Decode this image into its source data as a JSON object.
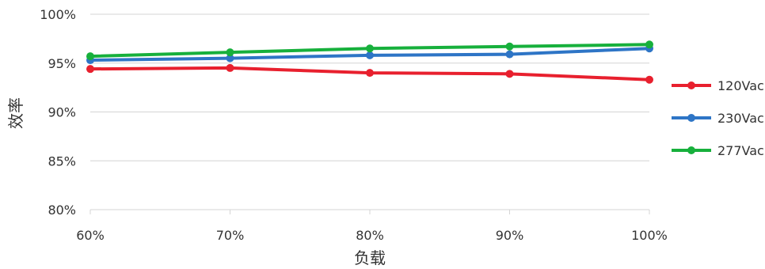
{
  "chart_data": {
    "type": "line",
    "xlabel": "负载",
    "ylabel": "效率",
    "categories": [
      "60%",
      "70%",
      "80%",
      "90%",
      "100%"
    ],
    "ylim": [
      80,
      100
    ],
    "yticks": [
      80,
      85,
      90,
      95,
      100
    ],
    "ytick_labels": [
      "80%",
      "85%",
      "90%",
      "95%",
      "100%"
    ],
    "grid": "horizontal",
    "legend_position": "right",
    "series": [
      {
        "name": "120Vac",
        "color": "#e8202e",
        "values": [
          94.4,
          94.5,
          94.0,
          93.9,
          93.3
        ]
      },
      {
        "name": "230Vac",
        "color": "#2e75c6",
        "values": [
          95.3,
          95.5,
          95.8,
          95.9,
          96.5
        ]
      },
      {
        "name": "277Vac",
        "color": "#17b03c",
        "values": [
          95.7,
          96.1,
          96.5,
          96.7,
          96.9
        ]
      }
    ]
  }
}
